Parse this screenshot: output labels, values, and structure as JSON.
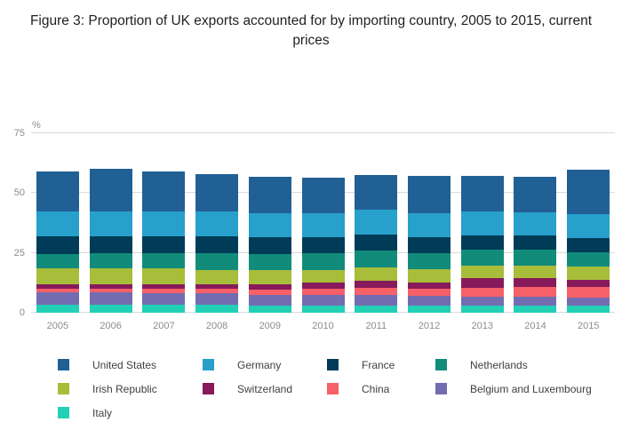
{
  "title": "Figure 3: Proportion of UK exports accounted for by importing country, 2005 to 2015, current prices",
  "chart_data": {
    "type": "bar",
    "stacked": true,
    "title": "Figure 3: Proportion of UK exports accounted for by importing country, 2005 to 2015, current prices",
    "unit_label": "%",
    "xlabel": "",
    "ylabel": "%",
    "ylim": [
      0,
      75
    ],
    "yticks": [
      0,
      25,
      50,
      75
    ],
    "grid": true,
    "legend_position": "bottom",
    "categories": [
      "2005",
      "2006",
      "2007",
      "2008",
      "2009",
      "2010",
      "2011",
      "2012",
      "2013",
      "2014",
      "2015"
    ],
    "series": [
      {
        "name": "United States",
        "color": "#206095",
        "values": [
          16.5,
          17.5,
          16.5,
          15.5,
          15.5,
          15.0,
          14.5,
          15.5,
          15.0,
          15.0,
          18.5
        ]
      },
      {
        "name": "Germany",
        "color": "#27A0CC",
        "values": [
          10.5,
          10.5,
          10.5,
          10.5,
          10.0,
          10.0,
          10.5,
          10.0,
          10.0,
          9.5,
          10.0
        ]
      },
      {
        "name": "France",
        "color": "#003C57",
        "values": [
          7.5,
          7.0,
          7.0,
          7.0,
          7.0,
          6.5,
          6.5,
          6.5,
          6.0,
          6.0,
          6.0
        ]
      },
      {
        "name": "Netherlands",
        "color": "#118C7B",
        "values": [
          6.0,
          6.5,
          6.5,
          7.0,
          6.5,
          7.0,
          7.0,
          7.0,
          6.5,
          6.5,
          6.0
        ]
      },
      {
        "name": "Irish Republic",
        "color": "#A8BD3A",
        "values": [
          6.5,
          6.5,
          6.5,
          6.0,
          6.0,
          5.5,
          5.5,
          5.5,
          5.5,
          5.5,
          5.5
        ]
      },
      {
        "name": "Switzerland",
        "color": "#871A5B",
        "values": [
          2.0,
          2.0,
          2.0,
          2.0,
          2.5,
          2.5,
          3.0,
          2.5,
          4.0,
          3.5,
          3.0
        ]
      },
      {
        "name": "China",
        "color": "#F66068",
        "values": [
          1.5,
          1.5,
          2.0,
          2.0,
          2.0,
          2.5,
          3.0,
          3.0,
          3.5,
          4.0,
          4.5
        ]
      },
      {
        "name": "Belgium and Luxembourg",
        "color": "#746CB1",
        "values": [
          5.0,
          5.0,
          4.5,
          4.5,
          4.5,
          4.5,
          4.5,
          4.0,
          4.0,
          4.0,
          3.5
        ]
      },
      {
        "name": "Italy",
        "color": "#22D0B6",
        "values": [
          3.5,
          3.5,
          3.5,
          3.5,
          3.0,
          3.0,
          3.0,
          3.0,
          2.8,
          2.8,
          2.8
        ]
      }
    ],
    "stack_order": "first series on top, last series at bottom"
  }
}
